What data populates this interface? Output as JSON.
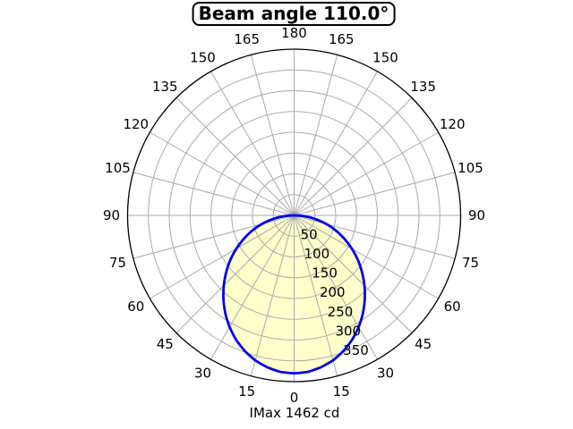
{
  "chart_data": {
    "type": "polar",
    "title": "Beam angle 110.0°",
    "footer": "IMax 1462 cd",
    "beam_angle_deg": 110.0,
    "imax_cd": 1462,
    "angle_tick_step_deg": 15,
    "angle_ticks_deg": [
      0,
      15,
      30,
      45,
      60,
      75,
      90,
      105,
      120,
      135,
      150,
      165,
      180
    ],
    "angle_labels_mirrored": true,
    "radial_ticks": [
      50,
      100,
      150,
      200,
      250,
      300,
      350
    ],
    "r_max": 400,
    "grid": true,
    "zero_direction": "down",
    "curve": {
      "symmetric": true,
      "angles_deg": [
        0,
        5,
        10,
        15,
        20,
        25,
        30,
        35,
        40,
        45,
        50,
        55,
        60,
        65,
        70,
        75,
        80,
        85,
        90
      ],
      "intensity": [
        380,
        378,
        371,
        361,
        347,
        330,
        310,
        288,
        264,
        239,
        213,
        187,
        160,
        133,
        107,
        80,
        53,
        27,
        0
      ]
    },
    "styles": {
      "curve_color": "#0000ee",
      "fill_color": "#ffffcc",
      "grid_color": "#aaaaaa",
      "axis_color": "#000000",
      "text_color": "#000000",
      "background": "#ffffff"
    }
  }
}
